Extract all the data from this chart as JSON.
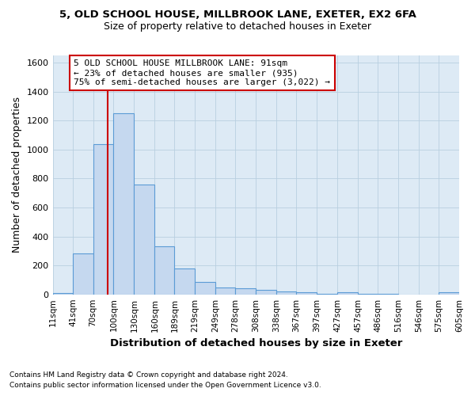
{
  "title1": "5, OLD SCHOOL HOUSE, MILLBROOK LANE, EXETER, EX2 6FA",
  "title2": "Size of property relative to detached houses in Exeter",
  "xlabel": "Distribution of detached houses by size in Exeter",
  "ylabel": "Number of detached properties",
  "bar_color": "#c5d8ef",
  "bar_edge_color": "#5b9bd5",
  "grid_color": "#b8cfe0",
  "bg_color": "#ddeaf5",
  "vline_x": 91,
  "vline_color": "#cc0000",
  "annotation_text": "5 OLD SCHOOL HOUSE MILLBROOK LANE: 91sqm\n← 23% of detached houses are smaller (935)\n75% of semi-detached houses are larger (3,022) →",
  "annotation_box_color": "#ffffff",
  "annotation_box_edge": "#cc0000",
  "footnote1": "Contains HM Land Registry data © Crown copyright and database right 2024.",
  "footnote2": "Contains public sector information licensed under the Open Government Licence v3.0.",
  "bin_edges": [
    11,
    41,
    70,
    100,
    130,
    160,
    189,
    219,
    249,
    278,
    308,
    338,
    367,
    397,
    427,
    457,
    486,
    516,
    546,
    575,
    605
  ],
  "bin_counts": [
    10,
    280,
    1035,
    1250,
    760,
    330,
    180,
    85,
    50,
    40,
    30,
    20,
    15,
    5,
    15,
    5,
    5,
    0,
    0,
    15
  ],
  "ylim": [
    0,
    1650
  ],
  "yticks": [
    0,
    200,
    400,
    600,
    800,
    1000,
    1200,
    1400,
    1600
  ]
}
